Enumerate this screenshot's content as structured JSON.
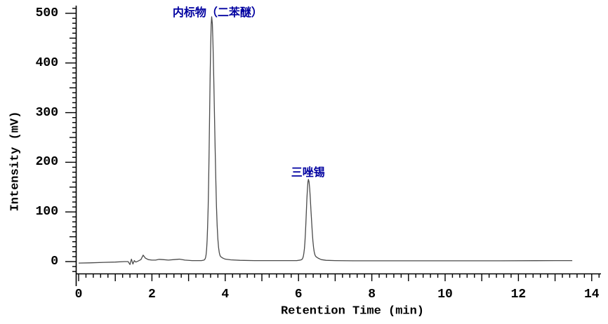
{
  "chart_data": {
    "type": "line",
    "title": "",
    "xlabel": "Retention Time (min)",
    "ylabel": "Intensity (mV)",
    "xlim": [
      0,
      14.25
    ],
    "ylim": [
      -24,
      515
    ],
    "x_ticks": [
      0,
      2,
      4,
      6,
      8,
      10,
      12,
      14
    ],
    "y_ticks": [
      0,
      100,
      200,
      300,
      400,
      500
    ],
    "x_minor_step_min": 0.2,
    "y_minor_step_mv": 10,
    "grid": false,
    "legend": "none",
    "trace_color": "#4a4a4a",
    "annotation_color": "#0000A0",
    "peaks": [
      {
        "name": "内标物（二苯醚）",
        "rt_min": 3.63,
        "height_mv": 488,
        "sigma_left": 0.055,
        "sigma_right": 0.075
      },
      {
        "name": "三唑锡",
        "rt_min": 6.27,
        "height_mv": 160,
        "sigma_left": 0.055,
        "sigma_right": 0.07
      }
    ],
    "annotations": [
      {
        "text": "内标物（二苯醚）",
        "rt_min": 3.79,
        "mv": 504
      },
      {
        "text": "三唑锡",
        "rt_min": 6.26,
        "mv": 182
      }
    ],
    "trace_end_min": 13.47,
    "baseline_points": [
      [
        0,
        -3
      ],
      [
        0.3,
        -2.5
      ],
      [
        0.7,
        -1.5
      ],
      [
        1.0,
        -1
      ],
      [
        1.25,
        0
      ],
      [
        1.35,
        0
      ],
      [
        1.4,
        -6
      ],
      [
        1.44,
        5
      ],
      [
        1.48,
        -5
      ],
      [
        1.52,
        2
      ],
      [
        1.56,
        -1
      ],
      [
        1.62,
        1
      ],
      [
        1.7,
        4
      ],
      [
        1.76,
        13
      ],
      [
        1.82,
        7
      ],
      [
        1.9,
        4
      ],
      [
        2.0,
        3
      ],
      [
        2.1,
        3
      ],
      [
        2.2,
        4.5
      ],
      [
        2.3,
        4
      ],
      [
        2.45,
        3
      ],
      [
        2.6,
        4
      ],
      [
        2.75,
        5
      ],
      [
        2.9,
        3
      ],
      [
        3.1,
        2
      ],
      [
        3.35,
        2
      ],
      [
        3.9,
        8
      ],
      [
        4.0,
        5
      ],
      [
        4.15,
        3.5
      ],
      [
        4.4,
        2.5
      ],
      [
        4.8,
        2
      ],
      [
        5.3,
        2
      ],
      [
        5.95,
        2
      ],
      [
        6.5,
        8
      ],
      [
        6.62,
        4
      ],
      [
        6.75,
        2.5
      ],
      [
        7.0,
        2
      ],
      [
        7.5,
        1.5
      ],
      [
        8.5,
        1.5
      ],
      [
        9.5,
        1.5
      ],
      [
        10.5,
        1.5
      ],
      [
        11.5,
        1.5
      ],
      [
        12.5,
        1.8
      ],
      [
        13.0,
        2
      ],
      [
        13.47,
        2
      ]
    ]
  }
}
